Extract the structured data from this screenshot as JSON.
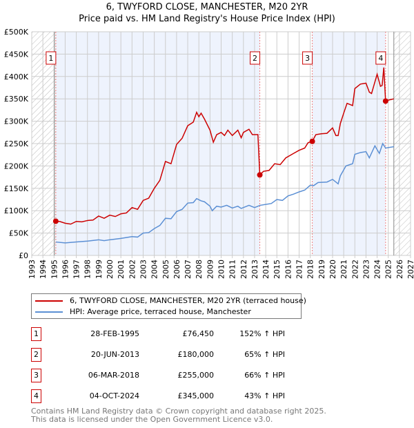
{
  "chart_data": {
    "type": "line",
    "title": "6, TWYFORD CLOSE, MANCHESTER, M20 2YR",
    "subtitle": "Price paid vs. HM Land Registry's House Price Index (HPI)",
    "xlim": [
      1993,
      2027
    ],
    "ylim": [
      0,
      500000
    ],
    "x_ticks": [
      "1993",
      "1994",
      "1995",
      "1996",
      "1997",
      "1998",
      "1999",
      "2000",
      "2001",
      "2002",
      "2003",
      "2004",
      "2005",
      "2006",
      "2007",
      "2008",
      "2009",
      "2010",
      "2011",
      "2012",
      "2013",
      "2014",
      "2015",
      "2016",
      "2017",
      "2018",
      "2019",
      "2020",
      "2021",
      "2022",
      "2023",
      "2024",
      "2025",
      "2026",
      "2027"
    ],
    "y_ticks": [
      {
        "v": 0,
        "label": "£0"
      },
      {
        "v": 50000,
        "label": "£50K"
      },
      {
        "v": 100000,
        "label": "£100K"
      },
      {
        "v": 150000,
        "label": "£150K"
      },
      {
        "v": 200000,
        "label": "£200K"
      },
      {
        "v": 250000,
        "label": "£250K"
      },
      {
        "v": 300000,
        "label": "£300K"
      },
      {
        "v": 350000,
        "label": "£350K"
      },
      {
        "v": 400000,
        "label": "£400K"
      },
      {
        "v": 450000,
        "label": "£450K"
      },
      {
        "v": 500000,
        "label": "£500K"
      }
    ],
    "grid": true,
    "hatched_ranges": [
      [
        1993,
        1995.16
      ],
      [
        2025.5,
        2027
      ]
    ],
    "shaded_ranges": [
      [
        1995.16,
        2013.47
      ],
      [
        2018.18,
        2024.76
      ]
    ],
    "series": [
      {
        "name": "6, TWYFORD CLOSE, MANCHESTER, M20 2YR (terraced house)",
        "color": "#cc0000",
        "points": [
          [
            1995.16,
            76
          ],
          [
            1995.5,
            76
          ],
          [
            1996,
            72
          ],
          [
            1996.5,
            70
          ],
          [
            1997,
            76
          ],
          [
            1997.5,
            75
          ],
          [
            1998,
            78
          ],
          [
            1998.5,
            79
          ],
          [
            1999,
            88
          ],
          [
            1999.5,
            83
          ],
          [
            2000,
            90
          ],
          [
            2000.5,
            87
          ],
          [
            2001,
            93
          ],
          [
            2001.5,
            95
          ],
          [
            2002,
            107
          ],
          [
            2002.5,
            103
          ],
          [
            2003,
            123
          ],
          [
            2003.5,
            128
          ],
          [
            2004,
            150
          ],
          [
            2004.5,
            168
          ],
          [
            2005,
            210
          ],
          [
            2005.5,
            205
          ],
          [
            2006,
            248
          ],
          [
            2006.5,
            262
          ],
          [
            2007,
            290
          ],
          [
            2007.5,
            298
          ],
          [
            2007.8,
            320
          ],
          [
            2008,
            310
          ],
          [
            2008.2,
            318
          ],
          [
            2008.5,
            305
          ],
          [
            2009,
            280
          ],
          [
            2009.3,
            253
          ],
          [
            2009.6,
            270
          ],
          [
            2010,
            275
          ],
          [
            2010.3,
            268
          ],
          [
            2010.6,
            280
          ],
          [
            2011,
            268
          ],
          [
            2011.5,
            280
          ],
          [
            2011.8,
            263
          ],
          [
            2012,
            275
          ],
          [
            2012.5,
            282
          ],
          [
            2012.8,
            270
          ],
          [
            2013.3,
            270
          ],
          [
            2013.47,
            180
          ],
          [
            2013.8,
            188
          ],
          [
            2014.3,
            190
          ],
          [
            2014.8,
            205
          ],
          [
            2015.3,
            203
          ],
          [
            2015.8,
            218
          ],
          [
            2016.5,
            228
          ],
          [
            2017,
            235
          ],
          [
            2017.5,
            240
          ],
          [
            2017.8,
            252
          ],
          [
            2018.18,
            255
          ],
          [
            2018.5,
            270
          ],
          [
            2019,
            272
          ],
          [
            2019.5,
            273
          ],
          [
            2020,
            285
          ],
          [
            2020.3,
            268
          ],
          [
            2020.5,
            268
          ],
          [
            2020.7,
            295
          ],
          [
            2021,
            318
          ],
          [
            2021.3,
            340
          ],
          [
            2021.8,
            335
          ],
          [
            2022,
            373
          ],
          [
            2022.5,
            383
          ],
          [
            2023,
            385
          ],
          [
            2023.3,
            365
          ],
          [
            2023.5,
            362
          ],
          [
            2024,
            405
          ],
          [
            2024.3,
            378
          ],
          [
            2024.45,
            380
          ],
          [
            2024.6,
            420
          ],
          [
            2024.76,
            345
          ],
          [
            2025,
            347
          ],
          [
            2025.5,
            350
          ]
        ]
      },
      {
        "name": "HPI: Average price, terraced house, Manchester",
        "color": "#5b8fd4",
        "points": [
          [
            1995.16,
            30
          ],
          [
            1996,
            28
          ],
          [
            1997,
            30
          ],
          [
            1998,
            32
          ],
          [
            1999,
            35
          ],
          [
            1999.5,
            33
          ],
          [
            2000,
            35
          ],
          [
            2001,
            38
          ],
          [
            2002,
            42
          ],
          [
            2002.5,
            41
          ],
          [
            2003,
            50
          ],
          [
            2003.5,
            51
          ],
          [
            2004,
            60
          ],
          [
            2004.5,
            67
          ],
          [
            2005,
            83
          ],
          [
            2005.5,
            82
          ],
          [
            2006,
            98
          ],
          [
            2006.5,
            103
          ],
          [
            2007,
            117
          ],
          [
            2007.5,
            118
          ],
          [
            2007.8,
            127
          ],
          [
            2008.2,
            122
          ],
          [
            2008.5,
            120
          ],
          [
            2009,
            110
          ],
          [
            2009.2,
            100
          ],
          [
            2009.6,
            110
          ],
          [
            2010,
            108
          ],
          [
            2010.5,
            112
          ],
          [
            2011,
            106
          ],
          [
            2011.5,
            110
          ],
          [
            2011.8,
            105
          ],
          [
            2012.5,
            112
          ],
          [
            2013,
            107
          ],
          [
            2013.5,
            112
          ],
          [
            2014.5,
            116
          ],
          [
            2015,
            125
          ],
          [
            2015.5,
            123
          ],
          [
            2016,
            133
          ],
          [
            2016.5,
            137
          ],
          [
            2017,
            142
          ],
          [
            2017.5,
            146
          ],
          [
            2018,
            157
          ],
          [
            2018.3,
            156
          ],
          [
            2018.7,
            163
          ],
          [
            2019.5,
            164
          ],
          [
            2020,
            170
          ],
          [
            2020.5,
            160
          ],
          [
            2020.7,
            178
          ],
          [
            2021.2,
            200
          ],
          [
            2021.8,
            205
          ],
          [
            2022,
            226
          ],
          [
            2022.5,
            230
          ],
          [
            2023,
            232
          ],
          [
            2023.3,
            218
          ],
          [
            2023.8,
            245
          ],
          [
            2024.2,
            228
          ],
          [
            2024.5,
            250
          ],
          [
            2024.76,
            240
          ],
          [
            2025.5,
            243
          ]
        ]
      }
    ],
    "y_unit": "thousands GBP",
    "sales": [
      {
        "n": "1",
        "x": 1995.16,
        "y": 76.45,
        "date": "28-FEB-1995",
        "price": "£76,450",
        "hpi": "152% ↑ HPI"
      },
      {
        "n": "2",
        "x": 2013.47,
        "y": 180,
        "date": "20-JUN-2013",
        "price": "£180,000",
        "hpi": "65% ↑ HPI"
      },
      {
        "n": "3",
        "x": 2018.18,
        "y": 255,
        "date": "06-MAR-2018",
        "price": "£255,000",
        "hpi": "66% ↑ HPI"
      },
      {
        "n": "4",
        "x": 2024.76,
        "y": 345,
        "date": "04-OCT-2024",
        "price": "£345,000",
        "hpi": "43% ↑ HPI"
      }
    ],
    "legend_position": "below"
  },
  "footer": {
    "line1": "Contains HM Land Registry data © Crown copyright and database right 2025.",
    "line2": "This data is licensed under the Open Government Licence v3.0."
  }
}
